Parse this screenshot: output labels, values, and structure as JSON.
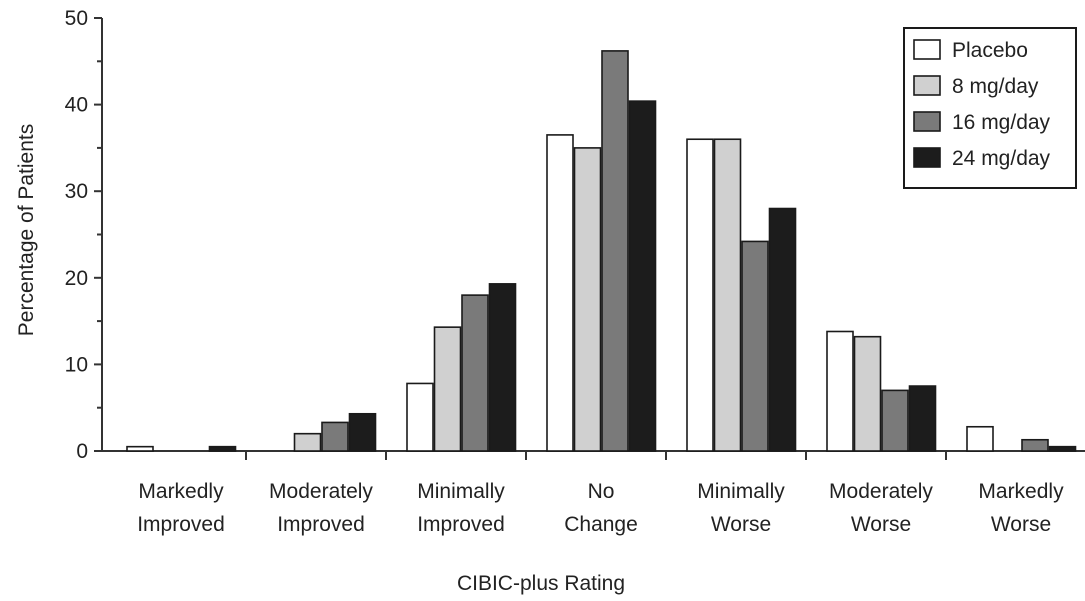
{
  "chart_data": {
    "type": "bar",
    "xlabel": "CIBIC-plus Rating",
    "ylabel": "Percentage of Patients",
    "ylim": [
      0,
      50
    ],
    "yticks": [
      "0",
      "10",
      "20",
      "30",
      "40",
      "50"
    ],
    "categories": [
      [
        "Markedly",
        "Improved"
      ],
      [
        "Moderately",
        "Improved"
      ],
      [
        "Minimally",
        "Improved"
      ],
      [
        "No",
        "Change"
      ],
      [
        "Minimally",
        "Worse"
      ],
      [
        "Moderately",
        "Worse"
      ],
      [
        "Markedly",
        "Worse"
      ]
    ],
    "series": [
      {
        "name": "Placebo",
        "color": "#ffffff",
        "values": [
          0.5,
          0,
          7.8,
          36.5,
          36,
          13.8,
          2.8
        ]
      },
      {
        "name": "8 mg/day",
        "color": "#d0d0d0",
        "values": [
          0,
          2,
          14.3,
          35,
          36,
          13.2,
          0
        ]
      },
      {
        "name": "16 mg/day",
        "color": "#7a7a7a",
        "values": [
          0,
          3.3,
          18,
          46.2,
          24.2,
          7,
          1.3
        ]
      },
      {
        "name": "24 mg/day",
        "color": "#1c1c1c",
        "values": [
          0.5,
          4.3,
          19.3,
          40.4,
          28,
          7.5,
          0.5
        ]
      }
    ],
    "legend_position": "top-right",
    "grid": false
  }
}
